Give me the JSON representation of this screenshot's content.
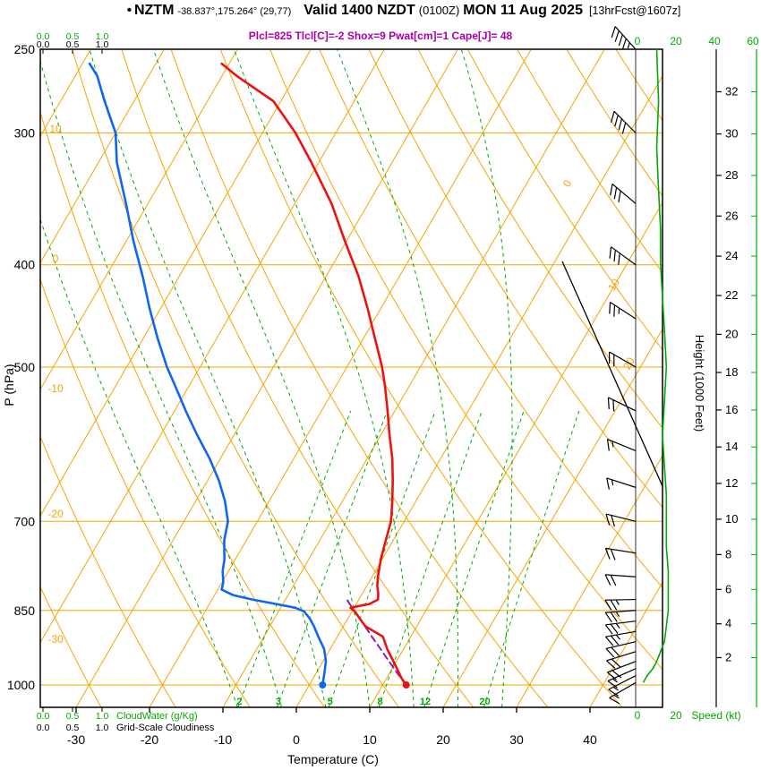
{
  "header": {
    "station_bullet": "•",
    "model": "NZTM",
    "coords": "-38.837°,175.264° (29,77)",
    "valid_label": "Valid 1400 NZDT",
    "valid_utc": "(0100Z)",
    "valid_date": "MON 11 Aug 2025",
    "fcst_tag": "[13hrFcst@1607z]",
    "params": "Plcl=825 Tlcl[C]=-2 Shox=9 Pwat[cm]=1 Cape[J]= 48"
  },
  "axes": {
    "pressure_label": "P (hPa)",
    "pressure_ticks": [
      250,
      300,
      400,
      500,
      700,
      850,
      1000
    ],
    "temperature_label": "Temperature (C)",
    "temperature_ticks": [
      -30,
      -20,
      -10,
      0,
      10,
      20,
      30,
      40
    ],
    "height_label": "Height (1000 Feet)",
    "height_ticks": [
      2,
      4,
      6,
      8,
      10,
      12,
      14,
      16,
      18,
      20,
      22,
      24,
      26,
      28,
      30,
      32
    ],
    "speed_label": "Speed (kt)",
    "speed_ticks_top": [
      0,
      20,
      40,
      60
    ],
    "speed_ticks_bottom": [
      0,
      20
    ],
    "cloudwater_label": "CloudWater (g/Kg)",
    "cloudwater_scale": [
      "0.0",
      "0.5",
      "1.0"
    ],
    "cloudiness_label": "Grid-Scale Cloudiness",
    "cloudiness_scale": [
      "0.0",
      "0.5",
      "1.0"
    ]
  },
  "chart_data": {
    "type": "skewt-log-p",
    "pressure_range_hpa": [
      250,
      1050
    ],
    "temperature_axis_c": [
      -35,
      45
    ],
    "isobar_lines_hpa": [
      300,
      400,
      500,
      700,
      850,
      1000
    ],
    "isotherm_step_c": 10,
    "dry_adiabat_step_c": 10,
    "mixing_ratio_lines_gkg": [
      2,
      3,
      5,
      8,
      12,
      20
    ],
    "moist_adiabat_start_temps_c": [
      -8,
      -2,
      4,
      10,
      16,
      22,
      28
    ],
    "left_edge_labels": [
      10,
      0,
      -10,
      -20,
      -30
    ],
    "diagonal_labels": [
      0,
      10,
      20
    ],
    "surface_temp_c": 13.2,
    "surface_dewpoint_c": 1.8,
    "lcl_hpa": 825,
    "lcl_temp_c": -2,
    "cape_j": 48,
    "pwat_cm": 1,
    "showalter": 9,
    "temperature_profile": [
      [
        1000,
        13.2
      ],
      [
        985,
        12
      ],
      [
        970,
        11
      ],
      [
        950,
        9.6
      ],
      [
        925,
        7.8
      ],
      [
        900,
        6.2
      ],
      [
        880,
        3
      ],
      [
        865,
        1.6
      ],
      [
        852,
        0.4
      ],
      [
        845,
        -0.5
      ],
      [
        838,
        1.8
      ],
      [
        830,
        2.6
      ],
      [
        820,
        2.2
      ],
      [
        805,
        1.4
      ],
      [
        790,
        0.8
      ],
      [
        760,
        -0.2
      ],
      [
        730,
        -1
      ],
      [
        700,
        -1.8
      ],
      [
        670,
        -3.2
      ],
      [
        640,
        -4.8
      ],
      [
        610,
        -6.6
      ],
      [
        580,
        -8.8
      ],
      [
        550,
        -11
      ],
      [
        520,
        -13.4
      ],
      [
        500,
        -15.2
      ],
      [
        470,
        -18.4
      ],
      [
        440,
        -21.8
      ],
      [
        410,
        -25.6
      ],
      [
        380,
        -30.2
      ],
      [
        350,
        -35
      ],
      [
        320,
        -41
      ],
      [
        300,
        -45.5
      ],
      [
        280,
        -51
      ],
      [
        265,
        -58
      ],
      [
        258,
        -61
      ]
    ],
    "dewpoint_profile": [
      [
        1000,
        1.8
      ],
      [
        985,
        1.4
      ],
      [
        970,
        1
      ],
      [
        950,
        0.4
      ],
      [
        925,
        -0.8
      ],
      [
        900,
        -2.6
      ],
      [
        880,
        -4
      ],
      [
        865,
        -5.2
      ],
      [
        852,
        -6.5
      ],
      [
        845,
        -8
      ],
      [
        838,
        -11
      ],
      [
        830,
        -14.5
      ],
      [
        822,
        -17.5
      ],
      [
        812,
        -19.5
      ],
      [
        800,
        -19.8
      ],
      [
        780,
        -20.8
      ],
      [
        760,
        -21.5
      ],
      [
        730,
        -23
      ],
      [
        700,
        -24
      ],
      [
        670,
        -26
      ],
      [
        640,
        -28.5
      ],
      [
        610,
        -31.5
      ],
      [
        580,
        -35
      ],
      [
        550,
        -38.5
      ],
      [
        520,
        -42
      ],
      [
        500,
        -44.5
      ],
      [
        470,
        -48
      ],
      [
        440,
        -51.5
      ],
      [
        410,
        -55
      ],
      [
        380,
        -59
      ],
      [
        350,
        -63
      ],
      [
        320,
        -67.5
      ],
      [
        300,
        -70
      ],
      [
        280,
        -74
      ],
      [
        265,
        -77
      ],
      [
        258,
        -79
      ]
    ],
    "parcel_path": [
      [
        1000,
        13.2
      ],
      [
        975,
        11.1
      ],
      [
        950,
        9
      ],
      [
        925,
        6.9
      ],
      [
        900,
        4.7
      ],
      [
        875,
        2.5
      ],
      [
        850,
        0.2
      ],
      [
        825,
        -2.1
      ]
    ],
    "winds": [
      [
        250,
        318,
        45
      ],
      [
        300,
        315,
        40
      ],
      [
        350,
        310,
        32
      ],
      [
        400,
        306,
        28
      ],
      [
        450,
        303,
        24
      ],
      [
        500,
        300,
        20
      ],
      [
        550,
        296,
        18
      ],
      [
        600,
        292,
        16
      ],
      [
        650,
        288,
        15
      ],
      [
        700,
        284,
        18
      ],
      [
        750,
        279,
        20
      ],
      [
        790,
        274,
        21
      ],
      [
        830,
        269,
        23
      ],
      [
        850,
        266,
        24
      ],
      [
        870,
        263,
        24
      ],
      [
        890,
        260,
        23
      ],
      [
        910,
        257,
        22
      ],
      [
        930,
        253,
        21
      ],
      [
        950,
        249,
        19
      ],
      [
        965,
        246,
        17
      ],
      [
        980,
        243,
        15
      ],
      [
        995,
        240,
        14
      ]
    ],
    "speed_profile_kt": [
      [
        250,
        10
      ],
      [
        280,
        11
      ],
      [
        310,
        10
      ],
      [
        340,
        11
      ],
      [
        370,
        12
      ],
      [
        400,
        12
      ],
      [
        430,
        13
      ],
      [
        460,
        14
      ],
      [
        500,
        15
      ],
      [
        540,
        14
      ],
      [
        580,
        13
      ],
      [
        620,
        14
      ],
      [
        660,
        15
      ],
      [
        700,
        15
      ],
      [
        740,
        15
      ],
      [
        780,
        16
      ],
      [
        820,
        16
      ],
      [
        850,
        16
      ],
      [
        880,
        15
      ],
      [
        910,
        14
      ],
      [
        930,
        12
      ],
      [
        950,
        10
      ],
      [
        965,
        8
      ],
      [
        980,
        5
      ],
      [
        995,
        3
      ]
    ],
    "colors": {
      "grid_orange": "#f7a400",
      "green": "#00aa00",
      "temperature_red": "#ee1111",
      "dewpoint_blue": "#1166ee",
      "parcel_purple": "#8822aa",
      "params_magenta": "#aa00aa",
      "black": "#000000"
    }
  }
}
